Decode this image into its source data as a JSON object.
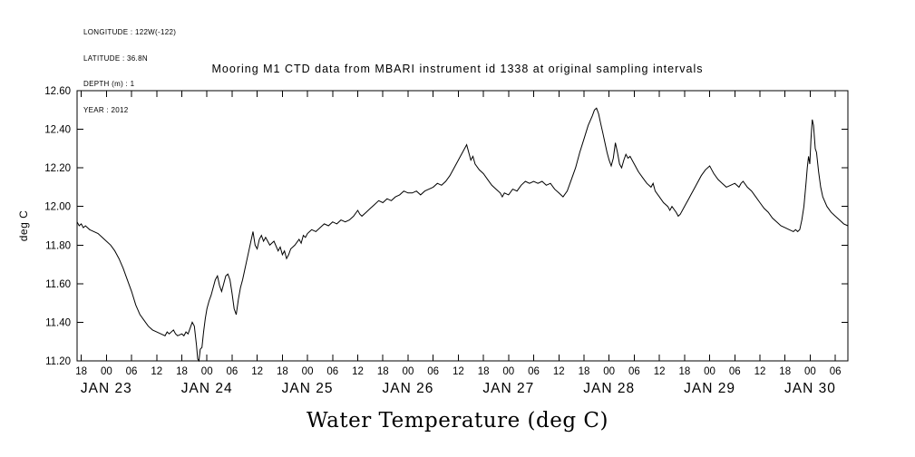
{
  "info": {
    "lines": [
      "LONGITUDE : 122W(-122)",
      "LATITUDE : 36.8N",
      "DEPTH (m) : 1",
      "YEAR : 2012"
    ]
  },
  "title": "Mooring M1 CTD data from MBARI instrument id 1338 at original sampling intervals",
  "bottom_title": "Water Temperature (deg C)",
  "y_axis_label": "deg C",
  "chart_data": {
    "type": "line",
    "title": "Mooring M1 CTD data from MBARI instrument id 1338 at original sampling intervals",
    "xlabel": "Water Temperature (deg C)",
    "ylabel": "deg C",
    "ylim": [
      11.2,
      12.6
    ],
    "ytick_values": [
      11.2,
      11.4,
      11.6,
      11.8,
      12.0,
      12.2,
      12.4,
      12.6
    ],
    "ytick_labels": [
      "11.20",
      "11.40",
      "11.60",
      "11.80",
      "12.00",
      "12.20",
      "12.40",
      "12.60"
    ],
    "x_unit": "hours, ticks every 6 h, t=0 at first '18' tick",
    "x_hours_range": [
      -1,
      183
    ],
    "grid": false,
    "legend": false,
    "line_color": "#000000",
    "hour_ticks": [
      [
        0,
        "18"
      ],
      [
        6,
        "00"
      ],
      [
        12,
        "06"
      ],
      [
        18,
        "12"
      ],
      [
        24,
        "18"
      ],
      [
        30,
        "00"
      ],
      [
        36,
        "06"
      ],
      [
        42,
        "12"
      ],
      [
        48,
        "18"
      ],
      [
        54,
        "00"
      ],
      [
        60,
        "06"
      ],
      [
        66,
        "12"
      ],
      [
        72,
        "18"
      ],
      [
        78,
        "00"
      ],
      [
        84,
        "06"
      ],
      [
        90,
        "12"
      ],
      [
        96,
        "18"
      ],
      [
        102,
        "00"
      ],
      [
        108,
        "06"
      ],
      [
        114,
        "12"
      ],
      [
        120,
        "18"
      ],
      [
        126,
        "00"
      ],
      [
        132,
        "06"
      ],
      [
        138,
        "12"
      ],
      [
        144,
        "18"
      ],
      [
        150,
        "00"
      ],
      [
        156,
        "06"
      ],
      [
        162,
        "12"
      ],
      [
        168,
        "18"
      ],
      [
        174,
        "00"
      ],
      [
        180,
        "06"
      ]
    ],
    "day_ticks": [
      [
        6,
        "JAN 23"
      ],
      [
        30,
        "JAN 24"
      ],
      [
        54,
        "JAN 25"
      ],
      [
        78,
        "JAN 26"
      ],
      [
        102,
        "JAN 27"
      ],
      [
        126,
        "JAN 28"
      ],
      [
        150,
        "JAN 29"
      ],
      [
        174,
        "JAN 30"
      ]
    ],
    "series": [
      {
        "name": "Water Temperature (deg C)",
        "points": [
          [
            -1,
            11.92
          ],
          [
            -0.5,
            11.9
          ],
          [
            0,
            11.91
          ],
          [
            0.5,
            11.89
          ],
          [
            1,
            11.9
          ],
          [
            2,
            11.88
          ],
          [
            3,
            11.87
          ],
          [
            4,
            11.86
          ],
          [
            5,
            11.84
          ],
          [
            6,
            11.82
          ],
          [
            7,
            11.8
          ],
          [
            8,
            11.77
          ],
          [
            9,
            11.73
          ],
          [
            10,
            11.68
          ],
          [
            11,
            11.62
          ],
          [
            12,
            11.56
          ],
          [
            13,
            11.49
          ],
          [
            14,
            11.44
          ],
          [
            15,
            11.41
          ],
          [
            16,
            11.38
          ],
          [
            17,
            11.36
          ],
          [
            18,
            11.35
          ],
          [
            19,
            11.34
          ],
          [
            20,
            11.33
          ],
          [
            20.5,
            11.35
          ],
          [
            21,
            11.34
          ],
          [
            22,
            11.36
          ],
          [
            22.5,
            11.34
          ],
          [
            23,
            11.33
          ],
          [
            24,
            11.34
          ],
          [
            24.5,
            11.33
          ],
          [
            25,
            11.35
          ],
          [
            25.5,
            11.34
          ],
          [
            26,
            11.37
          ],
          [
            26.5,
            11.4
          ],
          [
            27,
            11.38
          ],
          [
            27.5,
            11.28
          ],
          [
            27.8,
            11.21
          ],
          [
            28.1,
            11.2
          ],
          [
            28.4,
            11.26
          ],
          [
            28.8,
            11.27
          ],
          [
            29.2,
            11.35
          ],
          [
            29.6,
            11.42
          ],
          [
            30,
            11.47
          ],
          [
            30.5,
            11.51
          ],
          [
            31,
            11.54
          ],
          [
            31.5,
            11.58
          ],
          [
            32,
            11.62
          ],
          [
            32.5,
            11.64
          ],
          [
            33,
            11.59
          ],
          [
            33.5,
            11.56
          ],
          [
            34,
            11.6
          ],
          [
            34.5,
            11.64
          ],
          [
            35,
            11.65
          ],
          [
            35.5,
            11.62
          ],
          [
            36,
            11.55
          ],
          [
            36.5,
            11.47
          ],
          [
            37,
            11.44
          ],
          [
            37.5,
            11.52
          ],
          [
            38,
            11.58
          ],
          [
            38.5,
            11.62
          ],
          [
            39,
            11.67
          ],
          [
            39.5,
            11.72
          ],
          [
            40,
            11.77
          ],
          [
            40.5,
            11.82
          ],
          [
            41,
            11.87
          ],
          [
            41.5,
            11.8
          ],
          [
            42,
            11.78
          ],
          [
            42.5,
            11.83
          ],
          [
            43,
            11.85
          ],
          [
            43.5,
            11.82
          ],
          [
            44,
            11.84
          ],
          [
            45,
            11.8
          ],
          [
            46,
            11.82
          ],
          [
            47,
            11.77
          ],
          [
            47.5,
            11.79
          ],
          [
            48,
            11.75
          ],
          [
            48.5,
            11.77
          ],
          [
            49,
            11.73
          ],
          [
            49.5,
            11.75
          ],
          [
            50,
            11.78
          ],
          [
            51,
            11.8
          ],
          [
            52,
            11.83
          ],
          [
            52.5,
            11.81
          ],
          [
            53,
            11.85
          ],
          [
            53.5,
            11.84
          ],
          [
            54,
            11.86
          ],
          [
            55,
            11.88
          ],
          [
            56,
            11.87
          ],
          [
            57,
            11.89
          ],
          [
            58,
            11.91
          ],
          [
            59,
            11.9
          ],
          [
            60,
            11.92
          ],
          [
            61,
            11.91
          ],
          [
            62,
            11.93
          ],
          [
            63,
            11.92
          ],
          [
            64,
            11.93
          ],
          [
            65,
            11.95
          ],
          [
            66,
            11.98
          ],
          [
            66.5,
            11.96
          ],
          [
            67,
            11.95
          ],
          [
            68,
            11.97
          ],
          [
            69,
            11.99
          ],
          [
            70,
            12.01
          ],
          [
            71,
            12.03
          ],
          [
            72,
            12.02
          ],
          [
            73,
            12.04
          ],
          [
            74,
            12.03
          ],
          [
            75,
            12.05
          ],
          [
            76,
            12.06
          ],
          [
            77,
            12.08
          ],
          [
            78,
            12.07
          ],
          [
            79,
            12.07
          ],
          [
            80,
            12.08
          ],
          [
            81,
            12.06
          ],
          [
            82,
            12.08
          ],
          [
            83,
            12.09
          ],
          [
            84,
            12.1
          ],
          [
            85,
            12.12
          ],
          [
            86,
            12.11
          ],
          [
            87,
            12.13
          ],
          [
            88,
            12.16
          ],
          [
            89,
            12.2
          ],
          [
            90,
            12.24
          ],
          [
            91,
            12.28
          ],
          [
            91.5,
            12.3
          ],
          [
            92,
            12.32
          ],
          [
            92.5,
            12.28
          ],
          [
            93,
            12.24
          ],
          [
            93.5,
            12.26
          ],
          [
            94,
            12.22
          ],
          [
            95,
            12.19
          ],
          [
            96,
            12.17
          ],
          [
            97,
            12.14
          ],
          [
            98,
            12.11
          ],
          [
            99,
            12.09
          ],
          [
            100,
            12.07
          ],
          [
            100.5,
            12.05
          ],
          [
            101,
            12.07
          ],
          [
            102,
            12.06
          ],
          [
            103,
            12.09
          ],
          [
            104,
            12.08
          ],
          [
            105,
            12.11
          ],
          [
            106,
            12.13
          ],
          [
            107,
            12.12
          ],
          [
            108,
            12.13
          ],
          [
            109,
            12.12
          ],
          [
            110,
            12.13
          ],
          [
            111,
            12.11
          ],
          [
            112,
            12.12
          ],
          [
            113,
            12.09
          ],
          [
            114,
            12.07
          ],
          [
            115,
            12.05
          ],
          [
            116,
            12.08
          ],
          [
            117,
            12.14
          ],
          [
            118,
            12.2
          ],
          [
            119,
            12.28
          ],
          [
            120,
            12.35
          ],
          [
            121,
            12.42
          ],
          [
            122,
            12.47
          ],
          [
            122.5,
            12.5
          ],
          [
            123,
            12.51
          ],
          [
            123.5,
            12.48
          ],
          [
            124,
            12.43
          ],
          [
            124.5,
            12.38
          ],
          [
            125,
            12.33
          ],
          [
            125.5,
            12.28
          ],
          [
            126,
            12.24
          ],
          [
            126.5,
            12.21
          ],
          [
            127,
            12.25
          ],
          [
            127.5,
            12.33
          ],
          [
            128,
            12.28
          ],
          [
            128.5,
            12.22
          ],
          [
            129,
            12.2
          ],
          [
            129.5,
            12.24
          ],
          [
            130,
            12.27
          ],
          [
            130.5,
            12.25
          ],
          [
            131,
            12.26
          ],
          [
            132,
            12.22
          ],
          [
            133,
            12.18
          ],
          [
            134,
            12.15
          ],
          [
            135,
            12.12
          ],
          [
            136,
            12.1
          ],
          [
            136.5,
            12.12
          ],
          [
            137,
            12.08
          ],
          [
            138,
            12.05
          ],
          [
            139,
            12.02
          ],
          [
            140,
            12.0
          ],
          [
            140.5,
            11.98
          ],
          [
            141,
            12.0
          ],
          [
            142,
            11.97
          ],
          [
            142.5,
            11.95
          ],
          [
            143,
            11.96
          ],
          [
            144,
            12.0
          ],
          [
            145,
            12.04
          ],
          [
            146,
            12.08
          ],
          [
            147,
            12.12
          ],
          [
            148,
            12.16
          ],
          [
            149,
            12.19
          ],
          [
            150,
            12.21
          ],
          [
            150.5,
            12.19
          ],
          [
            151,
            12.17
          ],
          [
            152,
            12.14
          ],
          [
            153,
            12.12
          ],
          [
            154,
            12.1
          ],
          [
            155,
            12.11
          ],
          [
            156,
            12.12
          ],
          [
            157,
            12.1
          ],
          [
            157.5,
            12.12
          ],
          [
            158,
            12.13
          ],
          [
            159,
            12.1
          ],
          [
            160,
            12.08
          ],
          [
            161,
            12.05
          ],
          [
            162,
            12.02
          ],
          [
            163,
            11.99
          ],
          [
            164,
            11.97
          ],
          [
            165,
            11.94
          ],
          [
            166,
            11.92
          ],
          [
            167,
            11.9
          ],
          [
            168,
            11.89
          ],
          [
            169,
            11.88
          ],
          [
            170,
            11.87
          ],
          [
            170.5,
            11.88
          ],
          [
            171,
            11.87
          ],
          [
            171.5,
            11.88
          ],
          [
            172,
            11.93
          ],
          [
            172.5,
            12.0
          ],
          [
            173,
            12.12
          ],
          [
            173.3,
            12.2
          ],
          [
            173.6,
            12.26
          ],
          [
            173.9,
            12.22
          ],
          [
            174.2,
            12.35
          ],
          [
            174.5,
            12.45
          ],
          [
            174.8,
            12.42
          ],
          [
            175.2,
            12.3
          ],
          [
            175.5,
            12.28
          ],
          [
            176,
            12.18
          ],
          [
            176.5,
            12.1
          ],
          [
            177,
            12.05
          ],
          [
            178,
            12.0
          ],
          [
            179,
            11.97
          ],
          [
            180,
            11.95
          ],
          [
            181,
            11.93
          ],
          [
            182,
            11.91
          ],
          [
            183,
            11.9
          ]
        ]
      }
    ]
  }
}
